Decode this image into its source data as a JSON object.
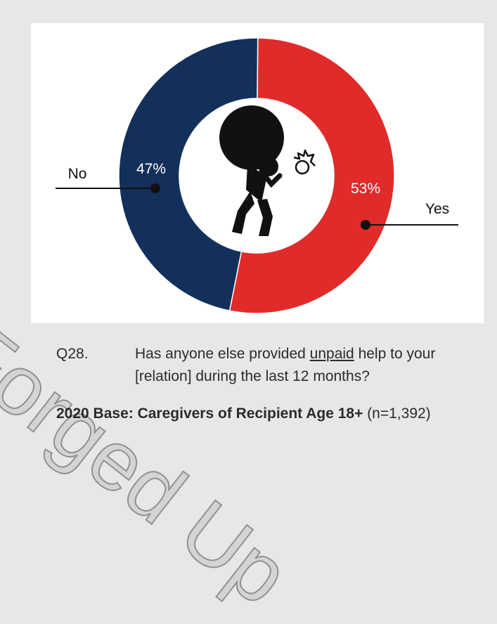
{
  "chart_data": {
    "type": "pie",
    "donut": true,
    "slices": [
      {
        "label": "Yes",
        "value": 53,
        "value_label": "53%",
        "color": "#e02b2a"
      },
      {
        "label": "No",
        "value": 47,
        "value_label": "47%",
        "color": "#13305a"
      }
    ],
    "center_icon": "person-carrying-boulder-icon"
  },
  "caption": {
    "qnum": "Q28.",
    "pre": "Has anyone else provided ",
    "underlined": "unpaid",
    "post": " help to your [relation] during the last 12 months?"
  },
  "base": {
    "bold": "2020 Base: Caregivers of Recipient Age 18+",
    "normal": " (n=1,392)"
  },
  "watermark": "Forged Up"
}
